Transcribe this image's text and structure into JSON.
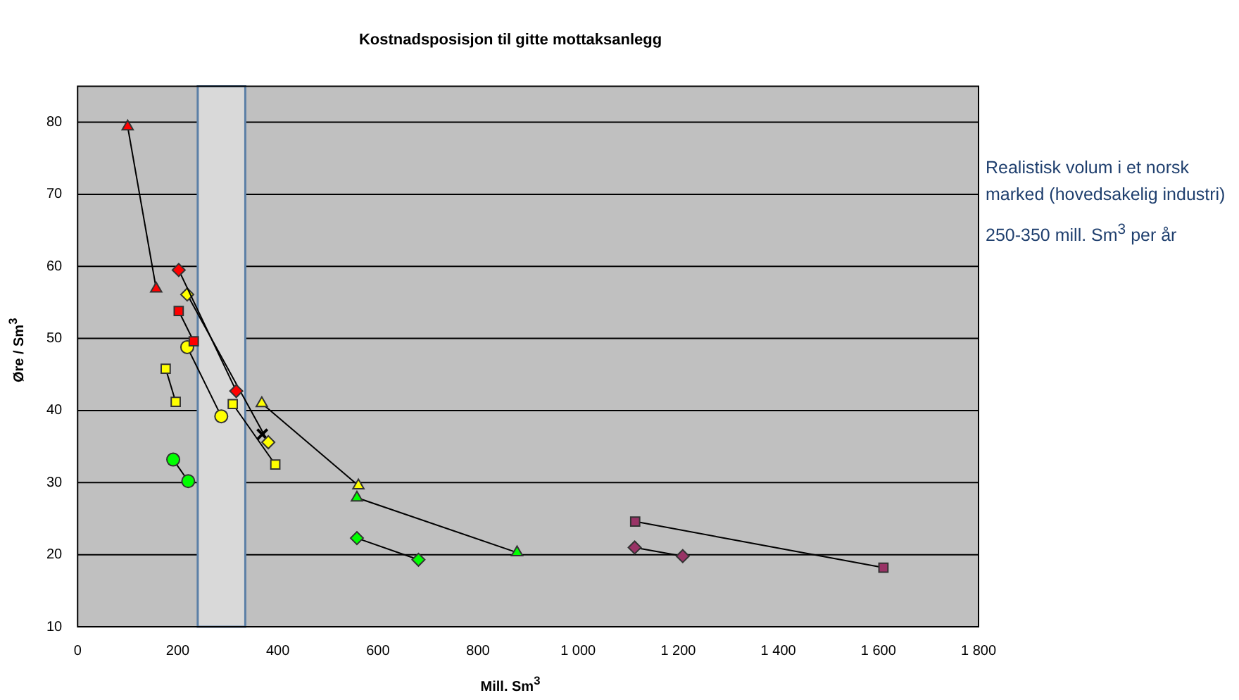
{
  "chart_data": {
    "type": "line",
    "title": "Kostnadsposisjon til gitte mottaksanlegg",
    "xlabel": "Mill. Sm$^{3}$",
    "ylabel": "Øre / Sm$^{3}$",
    "annotations": [
      "Realistisk volum i et  norsk marked (hovedsakelig industri)",
      "250-350 mill. Sm$^{3}$ per år"
    ],
    "xlim": [
      0,
      1800
    ],
    "xticks": [
      {
        "value": 0,
        "label": "0"
      },
      {
        "value": 200,
        "label": "200"
      },
      {
        "value": 400,
        "label": "400"
      },
      {
        "value": 600,
        "label": "600"
      },
      {
        "value": 800,
        "label": "800"
      },
      {
        "value": 1000,
        "label": "1 000"
      },
      {
        "value": 1200,
        "label": "1 200"
      },
      {
        "value": 1400,
        "label": "1 400"
      },
      {
        "value": 1600,
        "label": "1 600"
      },
      {
        "value": 1800,
        "label": "1 800"
      }
    ],
    "ylim": [
      10,
      85
    ],
    "yticks": [
      10,
      20,
      30,
      40,
      50,
      60,
      70,
      80
    ],
    "grid": "y",
    "legend": false,
    "bands": [
      {
        "axis": "x",
        "from": 240,
        "to": 335,
        "color": "#d9d9d9"
      }
    ],
    "series": [
      {
        "color": "#ff0000",
        "marker": "triangle",
        "x": [
          100,
          157
        ],
        "values": [
          79.4,
          56.9
        ]
      },
      {
        "color": "#ff0000",
        "marker": "diamond",
        "x": [
          202,
          317
        ],
        "values": [
          59.5,
          42.7
        ]
      },
      {
        "color": "#ffff00",
        "marker": "diamond",
        "x": [
          219,
          381
        ],
        "values": [
          56.1,
          35.6
        ]
      },
      {
        "color": "#ff0000",
        "marker": "square",
        "x": [
          202,
          232
        ],
        "values": [
          53.8,
          49.6
        ]
      },
      {
        "color": "#ffff00",
        "marker": "circle",
        "x": [
          219,
          287
        ],
        "values": [
          48.8,
          39.2
        ]
      },
      {
        "color": "#ffff00",
        "marker": "square",
        "x": [
          176,
          196
        ],
        "values": [
          45.8,
          41.2
        ]
      },
      {
        "color": "#ffff00",
        "marker": "square",
        "x": [
          310,
          395
        ],
        "values": [
          40.9,
          32.5
        ]
      },
      {
        "type": "scatter",
        "color": "#000000",
        "marker": "cross",
        "x": [
          369
        ],
        "values": [
          36.7
        ]
      },
      {
        "color": "#00ff00",
        "marker": "circle",
        "x": [
          191,
          221
        ],
        "values": [
          33.2,
          30.2
        ]
      },
      {
        "color": "#ffff00",
        "marker": "triangle",
        "x": [
          368,
          561
        ],
        "values": [
          41.0,
          29.6
        ]
      },
      {
        "color": "#00ff00",
        "marker": "triangle",
        "x": [
          558,
          878
        ],
        "values": [
          27.9,
          20.3
        ]
      },
      {
        "color": "#00ff00",
        "marker": "diamond",
        "x": [
          558,
          681
        ],
        "values": [
          22.3,
          19.3
        ]
      },
      {
        "color": "#993366",
        "marker": "square",
        "x": [
          1114,
          1610
        ],
        "values": [
          24.6,
          18.2
        ]
      },
      {
        "color": "#993366",
        "marker": "diamond",
        "x": [
          1113,
          1209
        ],
        "values": [
          21.0,
          19.8
        ]
      }
    ]
  }
}
